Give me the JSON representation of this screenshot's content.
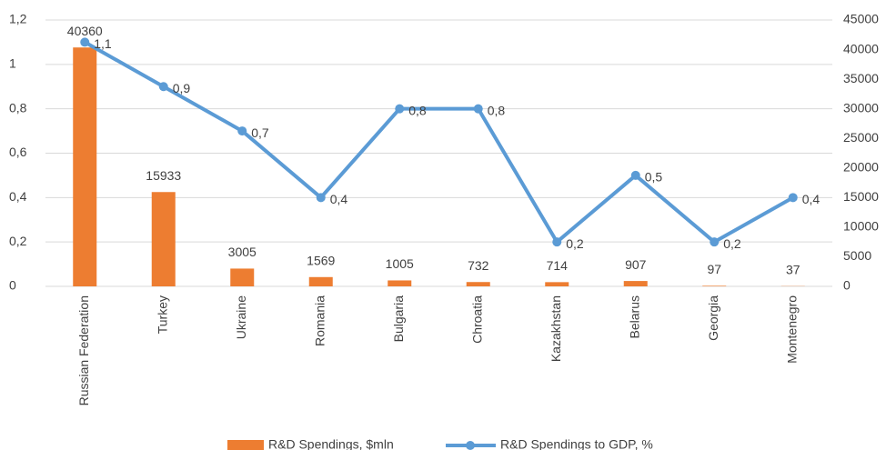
{
  "chart_data": {
    "type": "bar",
    "categories": [
      "Russian Federation",
      "Turkey",
      "Ukraine",
      "Romania",
      "Bulgaria",
      "Chroatia",
      "Kazakhstan",
      "Belarus",
      "Georgia",
      "Montenegro"
    ],
    "series": [
      {
        "name": "R&D Spendings, $mln",
        "type": "bar",
        "axis": "y2",
        "color": "#ed7d31",
        "values": [
          40360,
          15933,
          3005,
          1569,
          1005,
          732,
          714,
          907,
          97,
          37
        ]
      },
      {
        "name": "R&D Spendings to GDP, %",
        "type": "line",
        "color": "#5b9bd5",
        "values": [
          1.1,
          0.9,
          0.7,
          0.4,
          0.8,
          0.8,
          0.2,
          0.5,
          0.2,
          0.4
        ],
        "value_labels": [
          "1,1",
          "0,9",
          "0,7",
          "0,4",
          "0,8",
          "0,8",
          "0,2",
          "0,5",
          "0,2",
          "0,4"
        ]
      }
    ],
    "ylim": [
      0,
      1.2
    ],
    "yticks": [
      0,
      {
        "value": 0.2,
        "label": "0,2"
      },
      {
        "value": 0.4,
        "label": "0,4"
      },
      {
        "value": 0.6,
        "label": "0,6"
      },
      {
        "value": 0.8,
        "label": "0,8"
      },
      1,
      {
        "value": 1.2,
        "label": "1,2"
      }
    ],
    "y2lim": [
      0,
      45000
    ],
    "y2ticks": [
      0,
      5000,
      10000,
      15000,
      20000,
      25000,
      30000,
      35000,
      40000,
      45000
    ],
    "grid": true,
    "legend": "bottom"
  }
}
